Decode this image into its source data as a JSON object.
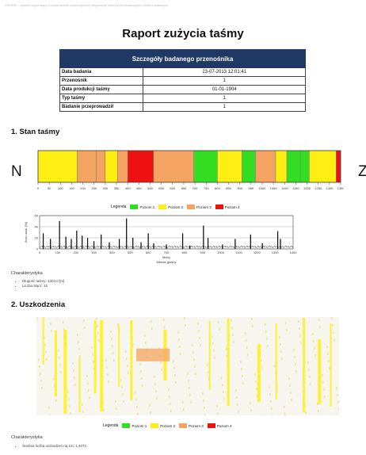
{
  "header_line": "CNTAPE - system wspierający monitorowanie automatycznej diagnostyki taśm przenośnikowych z linkami stalowymi",
  "title": "Raport zużycia taśmy",
  "details": {
    "heading": "Szczegóły badanego przenośnika",
    "rows": [
      {
        "label": "Data badania",
        "value": "23-07-2013 12:01:41"
      },
      {
        "label": "Przenośnik",
        "value": "1"
      },
      {
        "label": "Data produkcji taśmy",
        "value": "01-01-1904"
      },
      {
        "label": "Typ taśmy",
        "value": "1"
      },
      {
        "label": "Badanie przeprowadził",
        "value": "1"
      }
    ]
  },
  "section1": {
    "title": "1. Stan taśmy",
    "left_letter": "N",
    "right_letter": "Z",
    "char_title": "Charakterystyka",
    "bullets": [
      "Długość taśmy: 1304,0 [m]",
      "Liczba złącz: 15"
    ]
  },
  "section2": {
    "title": "2. Uszkodzenia",
    "char_title": "Charakterystyka",
    "bullets": [
      "Średnia liczba uszkodzeń na 1m: 1,4072"
    ]
  },
  "legend": {
    "title": "Legenda",
    "items": [
      {
        "label": "Poziom 1",
        "color": "#33dd22"
      },
      {
        "label": "Poziom 2",
        "color": "#ffee11"
      },
      {
        "label": "Poziom 3",
        "color": "#f4a460"
      },
      {
        "label": "Poziom 4",
        "color": "#ee1111"
      }
    ]
  },
  "chart_data": [
    {
      "type": "bar",
      "xlim": [
        0,
        1350
      ],
      "xticks": [
        0,
        50,
        100,
        150,
        200,
        250,
        300,
        350,
        400,
        450,
        500,
        550,
        600,
        650,
        700,
        750,
        800,
        850,
        900,
        950,
        1000,
        1050,
        1100,
        1150,
        1200,
        1250,
        1300,
        1350
      ],
      "segments": [
        {
          "start": 0,
          "end": 175,
          "level": 2
        },
        {
          "start": 175,
          "end": 260,
          "level": 3
        },
        {
          "start": 260,
          "end": 300,
          "level": 3
        },
        {
          "start": 300,
          "end": 355,
          "level": 2
        },
        {
          "start": 355,
          "end": 400,
          "level": 3
        },
        {
          "start": 400,
          "end": 515,
          "level": 4
        },
        {
          "start": 515,
          "end": 695,
          "level": 3
        },
        {
          "start": 695,
          "end": 800,
          "level": 1
        },
        {
          "start": 800,
          "end": 910,
          "level": 2
        },
        {
          "start": 910,
          "end": 970,
          "level": 1
        },
        {
          "start": 970,
          "end": 1060,
          "level": 3
        },
        {
          "start": 1060,
          "end": 1110,
          "level": 2
        },
        {
          "start": 1110,
          "end": 1170,
          "level": 1
        },
        {
          "start": 1170,
          "end": 1210,
          "level": 1
        },
        {
          "start": 1210,
          "end": 1330,
          "level": 2
        },
        {
          "start": 1330,
          "end": 1350,
          "level": 4
        }
      ]
    },
    {
      "type": "line",
      "xlabel": "Metry",
      "x2label": "Metraż głośny",
      "ylabel": "Ilość uszk. [%]",
      "xlim": [
        0,
        1400
      ],
      "ylim": [
        0,
        60
      ],
      "xticks": [
        0,
        100,
        200,
        300,
        400,
        500,
        600,
        700,
        800,
        900,
        1000,
        1100,
        1200,
        1300,
        1400
      ],
      "yticks": [
        0,
        20,
        40,
        60
      ],
      "peaks": [
        {
          "x": 20,
          "y": 28
        },
        {
          "x": 60,
          "y": 18
        },
        {
          "x": 110,
          "y": 50
        },
        {
          "x": 145,
          "y": 22
        },
        {
          "x": 175,
          "y": 18
        },
        {
          "x": 205,
          "y": 33
        },
        {
          "x": 235,
          "y": 24
        },
        {
          "x": 265,
          "y": 20
        },
        {
          "x": 300,
          "y": 14
        },
        {
          "x": 340,
          "y": 26
        },
        {
          "x": 385,
          "y": 12
        },
        {
          "x": 440,
          "y": 18
        },
        {
          "x": 480,
          "y": 55
        },
        {
          "x": 515,
          "y": 20
        },
        {
          "x": 560,
          "y": 12
        },
        {
          "x": 600,
          "y": 28
        },
        {
          "x": 630,
          "y": 10
        },
        {
          "x": 700,
          "y": 8
        },
        {
          "x": 790,
          "y": 28
        },
        {
          "x": 830,
          "y": 6
        },
        {
          "x": 905,
          "y": 42
        },
        {
          "x": 930,
          "y": 20
        },
        {
          "x": 1010,
          "y": 8
        },
        {
          "x": 1080,
          "y": 18
        },
        {
          "x": 1165,
          "y": 26
        },
        {
          "x": 1230,
          "y": 10
        },
        {
          "x": 1315,
          "y": 32
        },
        {
          "x": 1330,
          "y": 18
        }
      ]
    },
    {
      "type": "heatmap",
      "xlim": [
        0,
        100
      ],
      "ylim": [
        0,
        100
      ],
      "columns": [
        {
          "x": 2,
          "level": 2
        },
        {
          "x": 6,
          "level": 2
        },
        {
          "x": 9,
          "level": 2
        },
        {
          "x": 14,
          "level": 2
        },
        {
          "x": 19,
          "level": 2
        },
        {
          "x": 21,
          "level": 2
        },
        {
          "x": 27,
          "level": 2
        },
        {
          "x": 31,
          "level": 2
        },
        {
          "x": 42,
          "level": 2
        },
        {
          "x": 57,
          "level": 2
        },
        {
          "x": 63,
          "level": 2
        },
        {
          "x": 73,
          "level": 2
        },
        {
          "x": 79,
          "level": 2
        },
        {
          "x": 88,
          "level": 2
        },
        {
          "x": 93,
          "level": 2
        },
        {
          "x": 97,
          "level": 2
        }
      ],
      "blobs": [
        {
          "x0": 33,
          "x1": 44,
          "y0": 32,
          "y1": 45,
          "level": 3
        }
      ]
    }
  ]
}
